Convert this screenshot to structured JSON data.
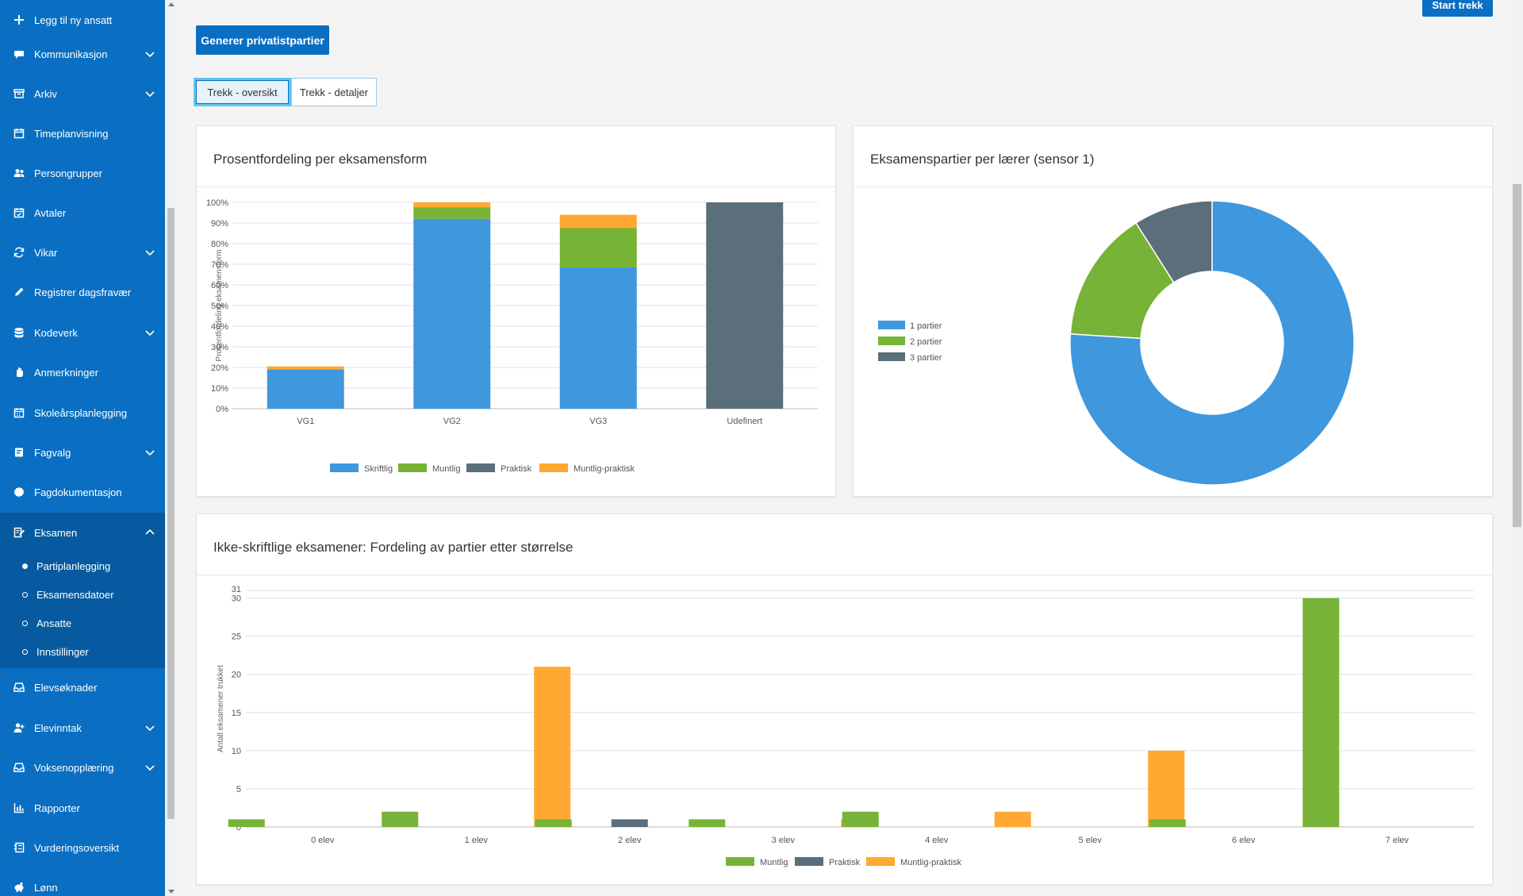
{
  "top": {
    "start_button": "Start trekk",
    "generate_button": "Generer privatistpartier"
  },
  "tabs": [
    {
      "label": "Trekk - oversikt",
      "active": true
    },
    {
      "label": "Trekk - detaljer",
      "active": false
    }
  ],
  "sidebar": {
    "items": [
      {
        "label": "Legg til ny ansatt",
        "icon": "plus-icon",
        "has_chevron": false
      },
      {
        "label": "Kommunikasjon",
        "icon": "chat-icon",
        "has_chevron": true
      },
      {
        "label": "Arkiv",
        "icon": "archive-icon",
        "has_chevron": true
      },
      {
        "label": "Timeplanvisning",
        "icon": "calendar-icon",
        "has_chevron": false
      },
      {
        "label": "Persongrupper",
        "icon": "users-icon",
        "has_chevron": false
      },
      {
        "label": "Avtaler",
        "icon": "calendar-check-icon",
        "has_chevron": false
      },
      {
        "label": "Vikar",
        "icon": "sync-icon",
        "has_chevron": true
      },
      {
        "label": "Registrer dagsfravær",
        "icon": "pencil-icon",
        "has_chevron": false
      },
      {
        "label": "Kodeverk",
        "icon": "database-icon",
        "has_chevron": true
      },
      {
        "label": "Anmerkninger",
        "icon": "hand-icon",
        "has_chevron": false
      },
      {
        "label": "Skoleårsplanlegging",
        "icon": "calendar-grid-icon",
        "has_chevron": false
      },
      {
        "label": "Fagvalg",
        "icon": "book-icon",
        "has_chevron": true
      },
      {
        "label": "Fagdokumentasjon",
        "icon": "badge-icon",
        "has_chevron": false
      },
      {
        "label": "Eksamen",
        "icon": "exam-icon",
        "has_chevron": true,
        "expanded": true
      },
      {
        "label": "Elevsøknader",
        "icon": "inbox-icon",
        "has_chevron": false
      },
      {
        "label": "Elevinntak",
        "icon": "user-plus-icon",
        "has_chevron": true
      },
      {
        "label": "Voksenopplæring",
        "icon": "inbox-icon",
        "has_chevron": true
      },
      {
        "label": "Rapporter",
        "icon": "bar-chart-icon",
        "has_chevron": false
      },
      {
        "label": "Vurderingsoversikt",
        "icon": "checklist-icon",
        "has_chevron": false
      },
      {
        "label": "Lønn",
        "icon": "piggy-bank-icon",
        "has_chevron": false
      }
    ],
    "eksamen_sub": [
      {
        "label": "Partiplanlegging",
        "current": true
      },
      {
        "label": "Eksamensdatoer",
        "current": false
      },
      {
        "label": "Ansatte",
        "current": false
      },
      {
        "label": "Innstillinger",
        "current": false
      }
    ]
  },
  "colors": {
    "skriftlig": "#3f97dd",
    "muntlig": "#77b336",
    "praktisk": "#5a6e7c",
    "muntlig_praktisk": "#ffa832",
    "sidebar": "#0a6fc2"
  },
  "chart_data": [
    {
      "type": "bar",
      "stacked": true,
      "title": "Prosentfordeling per eksamensform",
      "ylabel": "Prosentfordeling eksamensform",
      "xlabel": "",
      "categories": [
        "VG1",
        "VG2",
        "VG3",
        "Udefinert"
      ],
      "ylim": [
        0,
        100
      ],
      "ytick_labels": [
        "0%",
        "10%",
        "20%",
        "30%",
        "40%",
        "50%",
        "60%",
        "70%",
        "80%",
        "90%",
        "100%"
      ],
      "series": [
        {
          "name": "Skriftlig",
          "values": [
            19,
            92,
            68.5,
            0
          ]
        },
        {
          "name": "Muntlig",
          "values": [
            0,
            5.5,
            19,
            0
          ]
        },
        {
          "name": "Praktisk",
          "values": [
            0,
            0,
            0,
            100
          ]
        },
        {
          "name": "Muntlig-praktisk",
          "values": [
            1.5,
            2.5,
            6.5,
            0
          ]
        }
      ],
      "legend": "bottom",
      "grid": true
    },
    {
      "type": "pie",
      "donut": true,
      "title": "Eksamenspartier per lærer (sensor 1)",
      "slices": [
        {
          "name": "1 partier",
          "value": 76
        },
        {
          "name": "2 partier",
          "value": 15
        },
        {
          "name": "3 partier",
          "value": 9
        }
      ],
      "legend": "left"
    },
    {
      "type": "bar",
      "stacked": false,
      "title": "Ikke-skriftlige eksamener: Fordeling av partier etter størrelse",
      "ylabel": "Antall eksamener trukket",
      "xlabel": "",
      "categories": [
        "0 elev",
        "1 elev",
        "2 elev",
        "3 elev",
        "4 elev",
        "5 elev",
        "6 elev",
        "7 elev"
      ],
      "ylim": [
        0,
        31
      ],
      "ytick_labels": [
        "0",
        "5",
        "10",
        "15",
        "20",
        "25",
        "30",
        "31"
      ],
      "series": [
        {
          "name": "Muntlig",
          "values": [
            1,
            2,
            1,
            1,
            2,
            0,
            1,
            30
          ]
        },
        {
          "name": "Praktisk",
          "values": [
            0,
            0,
            1,
            0,
            0,
            0,
            0,
            0
          ]
        },
        {
          "name": "Muntlig-praktisk",
          "values": [
            0,
            21,
            0,
            1,
            2,
            10,
            0,
            0
          ]
        }
      ],
      "legend": "bottom",
      "grid": true
    }
  ]
}
